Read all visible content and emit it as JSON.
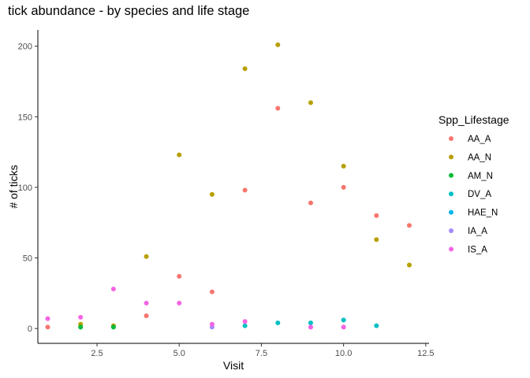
{
  "chart_data": {
    "type": "scatter",
    "title": "tick abundance - by species and life stage",
    "xlabel": "Visit",
    "ylabel": "# of ticks",
    "xlim": [
      0.7,
      12.6
    ],
    "ylim": [
      -10.5,
      211.5
    ],
    "xticks": [
      2.5,
      5.0,
      7.5,
      10.0,
      12.5
    ],
    "xtick_labels": [
      "2.5",
      "5.0",
      "7.5",
      "10.0",
      "12.5"
    ],
    "yticks": [
      0,
      50,
      100,
      150,
      200
    ],
    "ytick_labels": [
      "0",
      "50",
      "100",
      "150",
      "200"
    ],
    "grid": false,
    "legend": {
      "title": "Spp_Lifestage",
      "placement": "right"
    },
    "series": [
      {
        "name": "AA_A",
        "color": "#F8766D",
        "points": [
          [
            1,
            1
          ],
          [
            4,
            9
          ],
          [
            5,
            37
          ],
          [
            6,
            26
          ],
          [
            7,
            98
          ],
          [
            8,
            156
          ],
          [
            9,
            89
          ],
          [
            10,
            100
          ],
          [
            11,
            80
          ],
          [
            12,
            73
          ]
        ]
      },
      {
        "name": "AA_N",
        "color": "#B79F00",
        "points": [
          [
            2,
            3
          ],
          [
            3,
            2
          ],
          [
            4,
            51
          ],
          [
            5,
            123
          ],
          [
            6,
            95
          ],
          [
            7,
            184
          ],
          [
            8,
            201
          ],
          [
            9,
            160
          ],
          [
            10,
            115
          ],
          [
            11,
            63
          ],
          [
            12,
            45
          ]
        ]
      },
      {
        "name": "AM_N",
        "color": "#00BA38",
        "points": [
          [
            2,
            1
          ],
          [
            3,
            1
          ]
        ]
      },
      {
        "name": "DV_A",
        "color": "#00BFC4",
        "points": [
          [
            7,
            2
          ],
          [
            8,
            4
          ],
          [
            9,
            4
          ],
          [
            10,
            6
          ],
          [
            11,
            2
          ]
        ]
      },
      {
        "name": "HAE_N",
        "color": "#00B6EB",
        "points": []
      },
      {
        "name": "IA_A",
        "color": "#A58AFF",
        "points": [
          [
            6,
            1
          ],
          [
            9,
            1
          ],
          [
            10,
            1
          ]
        ]
      },
      {
        "name": "IS_A",
        "color": "#F564E3",
        "points": [
          [
            1,
            7
          ],
          [
            2,
            8
          ],
          [
            3,
            28
          ],
          [
            4,
            18
          ],
          [
            5,
            18
          ],
          [
            6,
            3
          ],
          [
            7,
            5
          ],
          [
            9,
            1
          ],
          [
            10,
            1
          ]
        ]
      }
    ]
  }
}
